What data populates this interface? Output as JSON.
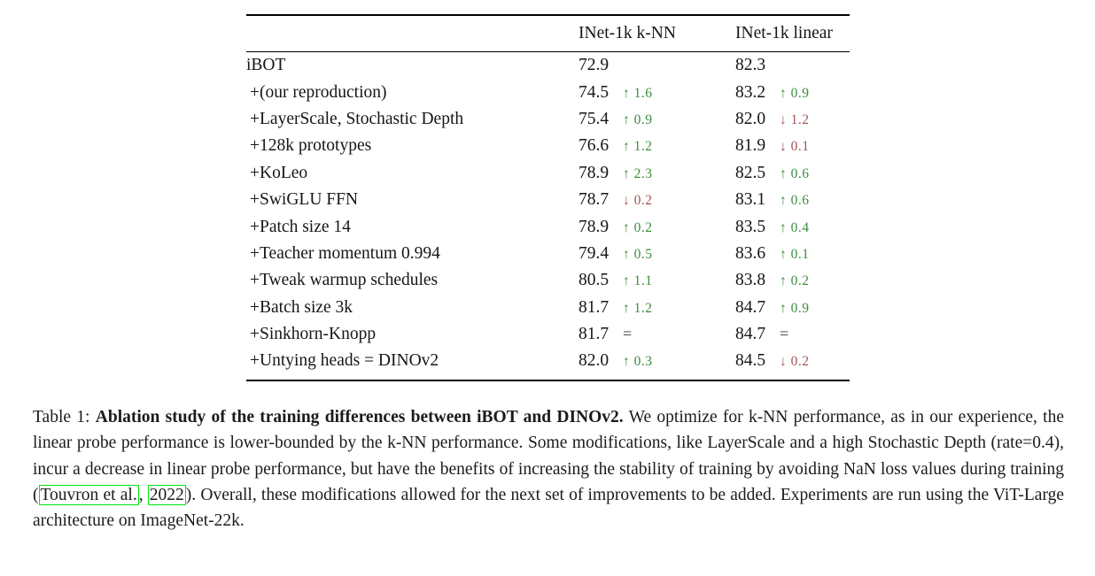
{
  "table": {
    "columns": [
      "",
      "INet-1k k-NN",
      "INet-1k linear"
    ],
    "rows": [
      {
        "label": "iBOT",
        "knn": "72.9",
        "knn_delta": "",
        "knn_dir": "",
        "lin": "82.3",
        "lin_delta": "",
        "lin_dir": ""
      },
      {
        "label": "+(our reproduction)",
        "knn": "74.5",
        "knn_delta": "↑ 1.6",
        "knn_dir": "up",
        "lin": "83.2",
        "lin_delta": "↑ 0.9",
        "lin_dir": "up"
      },
      {
        "label": "+LayerScale, Stochastic Depth",
        "knn": "75.4",
        "knn_delta": "↑ 0.9",
        "knn_dir": "up",
        "lin": "82.0",
        "lin_delta": "↓ 1.2",
        "lin_dir": "down"
      },
      {
        "label": "+128k prototypes",
        "knn": "76.6",
        "knn_delta": "↑ 1.2",
        "knn_dir": "up",
        "lin": "81.9",
        "lin_delta": "↓ 0.1",
        "lin_dir": "down"
      },
      {
        "label": "+KoLeo",
        "knn": "78.9",
        "knn_delta": "↑ 2.3",
        "knn_dir": "up",
        "lin": "82.5",
        "lin_delta": "↑ 0.6",
        "lin_dir": "up"
      },
      {
        "label": "+SwiGLU FFN",
        "knn": "78.7",
        "knn_delta": "↓ 0.2",
        "knn_dir": "down",
        "lin": "83.1",
        "lin_delta": "↑ 0.6",
        "lin_dir": "up"
      },
      {
        "label": "+Patch size 14",
        "knn": "78.9",
        "knn_delta": "↑ 0.2",
        "knn_dir": "up",
        "lin": "83.5",
        "lin_delta": "↑ 0.4",
        "lin_dir": "up"
      },
      {
        "label": "+Teacher momentum 0.994",
        "knn": "79.4",
        "knn_delta": "↑ 0.5",
        "knn_dir": "up",
        "lin": "83.6",
        "lin_delta": "↑ 0.1",
        "lin_dir": "up"
      },
      {
        "label": "+Tweak warmup schedules",
        "knn": "80.5",
        "knn_delta": "↑ 1.1",
        "knn_dir": "up",
        "lin": "83.8",
        "lin_delta": "↑ 0.2",
        "lin_dir": "up"
      },
      {
        "label": "+Batch size 3k",
        "knn": "81.7",
        "knn_delta": "↑ 1.2",
        "knn_dir": "up",
        "lin": "84.7",
        "lin_delta": "↑ 0.9",
        "lin_dir": "up"
      },
      {
        "label": "+Sinkhorn-Knopp",
        "knn": "81.7",
        "knn_delta": "=",
        "knn_dir": "eq",
        "lin": "84.7",
        "lin_delta": "=",
        "lin_dir": "eq"
      },
      {
        "label": "+Untying heads = DINOv2",
        "knn": "82.0",
        "knn_delta": "↑ 0.3",
        "knn_dir": "up",
        "lin": "84.5",
        "lin_delta": "↓ 0.2",
        "lin_dir": "down"
      }
    ]
  },
  "caption": {
    "prefix": "Table 1: ",
    "bold": "Ablation study of the training differences between iBOT and DINOv2.",
    "body1": " We optimize for k-NN performance, as in our experience, the linear probe performance is lower-bounded by the k-NN performance. Some modifications, like LayerScale and a high Stochastic Depth (rate=0.4), incur a decrease in linear probe performance, but have the benefits of increasing the stability of training by avoiding NaN loss values during training (",
    "cite_authors": "Touvron et al.",
    "cite_sep": ", ",
    "cite_year": "2022",
    "body2": "). Overall, these modifications allowed for the next set of improvements to be added. Experiments are run using the ViT-Large architecture on ImageNet-22k."
  },
  "colors": {
    "increase_green": "#3c8c3c",
    "decrease_red": "#a35454",
    "citation_border_green": "#00e613",
    "rule_black": "#000000"
  }
}
